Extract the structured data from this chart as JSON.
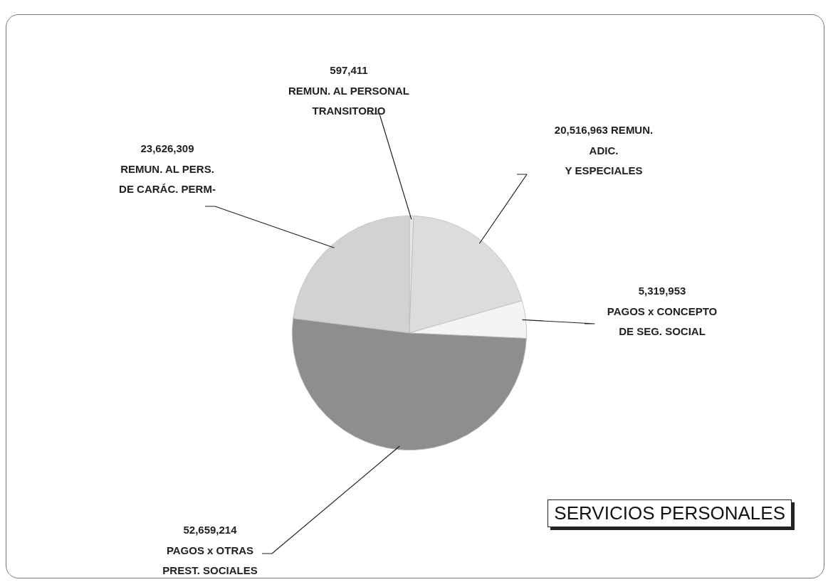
{
  "chart_data": {
    "type": "pie",
    "title": "SERVICIOS PERSONALES",
    "categories": [
      "REMUN. AL PERSONAL TRANSITORIO",
      "REMUN. ADIC. Y ESPECIALES",
      "PAGOS x CONCEPTO DE SEG. SOCIAL",
      "PAGOS x OTRAS PREST. SOCIALES",
      "REMUN. AL PERS. DE CARÁC. PERM-"
    ],
    "values": [
      597411,
      20516963,
      5319953,
      52659214,
      23626309
    ],
    "colors": [
      "#e6e6e6",
      "#dcdcdc",
      "#f4f4f4",
      "#8e8e8e",
      "#d2d2d2"
    ],
    "value_labels": [
      "597,411",
      "20,516,963",
      "5,319,953",
      "52,659,214",
      "23,626,309"
    ],
    "legend": false
  }
}
